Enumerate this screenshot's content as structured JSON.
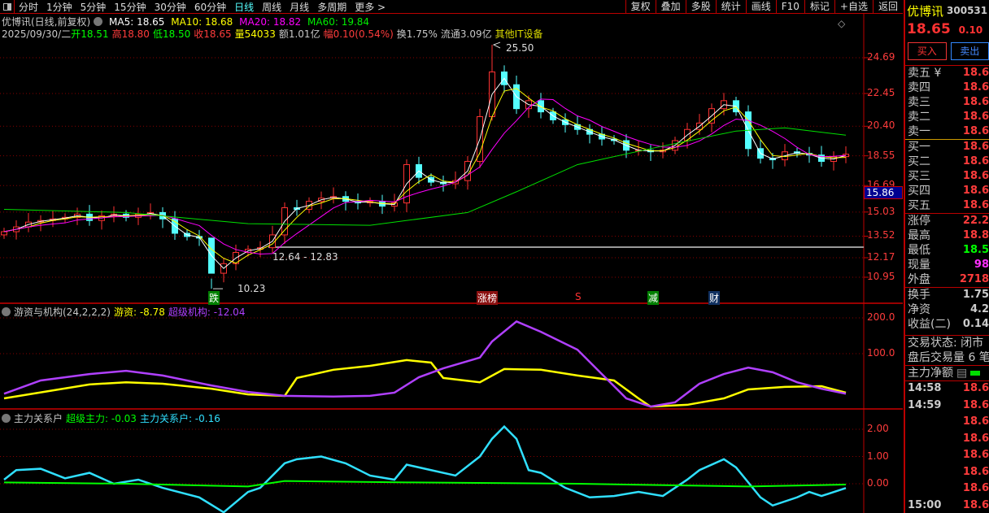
{
  "toolbar": {
    "tabs": [
      "分时",
      "1分钟",
      "5分钟",
      "15分钟",
      "30分钟",
      "60分钟",
      "日线",
      "周线",
      "月线",
      "多周期",
      "更多 >"
    ],
    "active": "日线",
    "right_buttons": [
      "复权",
      "叠加",
      "多股",
      "统计",
      "画线",
      "F10",
      "标记",
      "+自选",
      "返回"
    ]
  },
  "header": {
    "title": "优博讯(日线,前复权)",
    "ma5": "MA5: 18.65",
    "ma10": "MA10: 18.68",
    "ma20": "MA20: 18.82",
    "ma60": "MA60: 19.84",
    "date": "2025/09/30/二",
    "open": "开18.51",
    "high": "高18.80",
    "low": "低18.50",
    "close": "收18.65",
    "volume": "量54033",
    "amount": "额1.01亿",
    "change": "幅0.10(0.54%)",
    "turnover": "换1.75%",
    "float": "流通3.09亿",
    "sector": "其他IT设备"
  },
  "colors": {
    "up": "#ff3232",
    "down": "#54ffff",
    "ma5": "#ffffff",
    "ma10": "#ffff00",
    "ma20": "#ff00ff",
    "ma60": "#00e000",
    "youzi": "#ffff00",
    "jigou": "#b040ff",
    "chaoji": "#00ff00",
    "guanxi": "#30e0ff"
  },
  "chart_data": [
    {
      "type": "candlestick",
      "y_ticks": [
        "24.69",
        "22.45",
        "20.40",
        "18.55",
        "16.69",
        "15.03",
        "13.52",
        "12.17",
        "10.95"
      ],
      "ylim": [
        10.23,
        25.5
      ],
      "closes": [
        13.8,
        14.1,
        14.4,
        14.5,
        14.6,
        14.7,
        14.9,
        14.5,
        14.8,
        14.9,
        14.7,
        14.9,
        15.0,
        14.6,
        13.7,
        13.5,
        13.4,
        11.2,
        11.8,
        12.5,
        12.7,
        12.8,
        13.6,
        15.3,
        15.2,
        15.7,
        15.9,
        16.0,
        15.7,
        15.6,
        15.7,
        15.4,
        15.6,
        18.0,
        17.2,
        16.9,
        16.8,
        17.0,
        18.2,
        21.0,
        23.8,
        23.0,
        21.5,
        22.0,
        21.3,
        20.8,
        20.5,
        20.2,
        19.9,
        19.6,
        19.5,
        18.9,
        18.9,
        18.8,
        18.9,
        19.5,
        20.2,
        20.6,
        21.5,
        22.0,
        21.3,
        19.0,
        18.4,
        18.3,
        18.8,
        18.7,
        18.6,
        18.2,
        18.5,
        18.65
      ],
      "ma60": [
        [
          0,
          15.2
        ],
        [
          10,
          15.0
        ],
        [
          20,
          14.3
        ],
        [
          30,
          14.2
        ],
        [
          38,
          15.0
        ],
        [
          42,
          16.3
        ],
        [
          47,
          18.0
        ],
        [
          53,
          19.0
        ],
        [
          60,
          20.1
        ],
        [
          64,
          20.3
        ],
        [
          69,
          19.84
        ]
      ],
      "crosshair_price": "15.86",
      "ref_line_price": 12.83,
      "annotations": {
        "high": "25.50",
        "low": "10.23",
        "range": "12.64 - 12.83"
      },
      "markers": [
        {
          "label": "跌",
          "bar": 17,
          "color": "#008000"
        },
        {
          "label": "涨榜",
          "bar": 39,
          "color": "#8b1010"
        },
        {
          "label": "S",
          "bar": 47,
          "color": "#000"
        },
        {
          "label": "减",
          "bar": 53,
          "color": "#008000"
        },
        {
          "label": "财",
          "bar": 58,
          "color": "#103060"
        }
      ]
    },
    {
      "type": "line",
      "title": "游资与机构(24,2,2,2)",
      "y_ticks": [
        "200.0",
        "100.0"
      ],
      "series": [
        {
          "name": "游资",
          "label": "游资: -8.78",
          "points": [
            [
              0,
              -25
            ],
            [
              7,
              14
            ],
            [
              10,
              20
            ],
            [
              13,
              16
            ],
            [
              17,
              2
            ],
            [
              20,
              -14
            ],
            [
              23,
              -18
            ],
            [
              24,
              32
            ],
            [
              27,
              55
            ],
            [
              30,
              66
            ],
            [
              33,
              82
            ],
            [
              35,
              75
            ],
            [
              36,
              32
            ],
            [
              39,
              20
            ],
            [
              41,
              57
            ],
            [
              44,
              55
            ],
            [
              47,
              39
            ],
            [
              50,
              25
            ],
            [
              52,
              -25
            ],
            [
              53,
              -48
            ],
            [
              56,
              -43
            ],
            [
              59,
              -25
            ],
            [
              61,
              0
            ],
            [
              64,
              7
            ],
            [
              67,
              9
            ],
            [
              69,
              -9
            ]
          ]
        },
        {
          "name": "超级机构",
          "label": "超级机构: -12.04",
          "points": [
            [
              0,
              -12
            ],
            [
              3,
              25
            ],
            [
              7,
              43
            ],
            [
              10,
              52
            ],
            [
              13,
              39
            ],
            [
              17,
              11
            ],
            [
              20,
              -7
            ],
            [
              23,
              -18
            ],
            [
              27,
              -20
            ],
            [
              30,
              -18
            ],
            [
              32,
              -9
            ],
            [
              34,
              34
            ],
            [
              36,
              59
            ],
            [
              39,
              89
            ],
            [
              40,
              134
            ],
            [
              42,
              190
            ],
            [
              44,
              161
            ],
            [
              47,
              111
            ],
            [
              49,
              43
            ],
            [
              51,
              -25
            ],
            [
              53,
              -48
            ],
            [
              55,
              -36
            ],
            [
              57,
              16
            ],
            [
              59,
              43
            ],
            [
              61,
              61
            ],
            [
              63,
              48
            ],
            [
              65,
              20
            ],
            [
              67,
              2
            ],
            [
              69,
              -12
            ]
          ]
        }
      ]
    },
    {
      "type": "line",
      "title": "主力关系户",
      "y_ticks": [
        "2.00",
        "1.00",
        "0.00"
      ],
      "series": [
        {
          "name": "超级主力",
          "label": "超级主力: -0.03",
          "points": [
            [
              0,
              0.05
            ],
            [
              10,
              0.0
            ],
            [
              20,
              -0.1
            ],
            [
              23,
              0.1
            ],
            [
              33,
              0.05
            ],
            [
              47,
              0.0
            ],
            [
              61,
              -0.1
            ],
            [
              69,
              -0.03
            ]
          ]
        },
        {
          "name": "主力关系户",
          "label": "主力关系户: -0.16",
          "points": [
            [
              0,
              0.15
            ],
            [
              1,
              0.5
            ],
            [
              3,
              0.55
            ],
            [
              5,
              0.2
            ],
            [
              7,
              0.4
            ],
            [
              9,
              0
            ],
            [
              11,
              0.15
            ],
            [
              13,
              -0.15
            ],
            [
              16,
              -0.5
            ],
            [
              18,
              -1.05
            ],
            [
              20,
              -0.3
            ],
            [
              21,
              -0.15
            ],
            [
              23,
              0.75
            ],
            [
              24,
              0.9
            ],
            [
              26,
              1.0
            ],
            [
              28,
              0.75
            ],
            [
              30,
              0.3
            ],
            [
              32,
              0.15
            ],
            [
              33,
              0.7
            ],
            [
              35,
              0.5
            ],
            [
              37,
              0.3
            ],
            [
              39,
              1.0
            ],
            [
              40,
              1.65
            ],
            [
              41,
              2.1
            ],
            [
              42,
              1.65
            ],
            [
              43,
              0.5
            ],
            [
              44,
              0.4
            ],
            [
              46,
              -0.15
            ],
            [
              48,
              -0.5
            ],
            [
              50,
              -0.45
            ],
            [
              52,
              -0.3
            ],
            [
              54,
              -0.45
            ],
            [
              56,
              0.15
            ],
            [
              57,
              0.5
            ],
            [
              59,
              0.9
            ],
            [
              60,
              0.6
            ],
            [
              62,
              -0.5
            ],
            [
              63,
              -0.8
            ],
            [
              65,
              -0.5
            ],
            [
              66,
              -0.3
            ],
            [
              67,
              -0.45
            ],
            [
              69,
              -0.16
            ]
          ]
        }
      ]
    }
  ],
  "quote": {
    "name": "优博讯",
    "code": "300531",
    "price": "18.65",
    "change": "0.10",
    "buy": "买入",
    "sell": "卖出",
    "book": [
      {
        "l": "卖五 ¥",
        "v": "18.6"
      },
      {
        "l": "卖四",
        "v": "18.6"
      },
      {
        "l": "卖三",
        "v": "18.6"
      },
      {
        "l": "卖二",
        "v": "18.6"
      },
      {
        "l": "卖一",
        "v": "18.6"
      },
      {
        "l": "买一",
        "v": "18.6"
      },
      {
        "l": "买二",
        "v": "18.6"
      },
      {
        "l": "买三",
        "v": "18.6"
      },
      {
        "l": "买四",
        "v": "18.6"
      },
      {
        "l": "买五",
        "v": "18.6"
      }
    ],
    "stats": [
      {
        "l": "涨停",
        "v": "22.2",
        "c": "#ff3c3c"
      },
      {
        "l": "最高",
        "v": "18.8",
        "c": "#ff3c3c"
      },
      {
        "l": "最低",
        "v": "18.5",
        "c": "#00ff00"
      },
      {
        "l": "现量",
        "v": "98",
        "c": "#ff30ff"
      },
      {
        "l": "外盘",
        "v": "2718",
        "c": "#ff3c3c"
      }
    ],
    "stats2": [
      {
        "l": "换手",
        "v": "1.75"
      },
      {
        "l": "净资",
        "v": "4.2"
      },
      {
        "l": "收益(二)",
        "v": "0.14"
      }
    ],
    "status": "交易状态: 闭市",
    "after_hours": "盘后交易量 6 笔",
    "net_flow": "主力净额",
    "ticks": [
      {
        "t": "14:58",
        "v": "18.6"
      },
      {
        "t": "14:59",
        "v": "18.6"
      },
      {
        "t": "",
        "v": "18.6"
      },
      {
        "t": "",
        "v": "18.6"
      },
      {
        "t": "",
        "v": "18.6"
      },
      {
        "t": "",
        "v": "18.6"
      },
      {
        "t": "",
        "v": "18.6"
      },
      {
        "t": "15:00",
        "v": "18.6"
      }
    ]
  }
}
